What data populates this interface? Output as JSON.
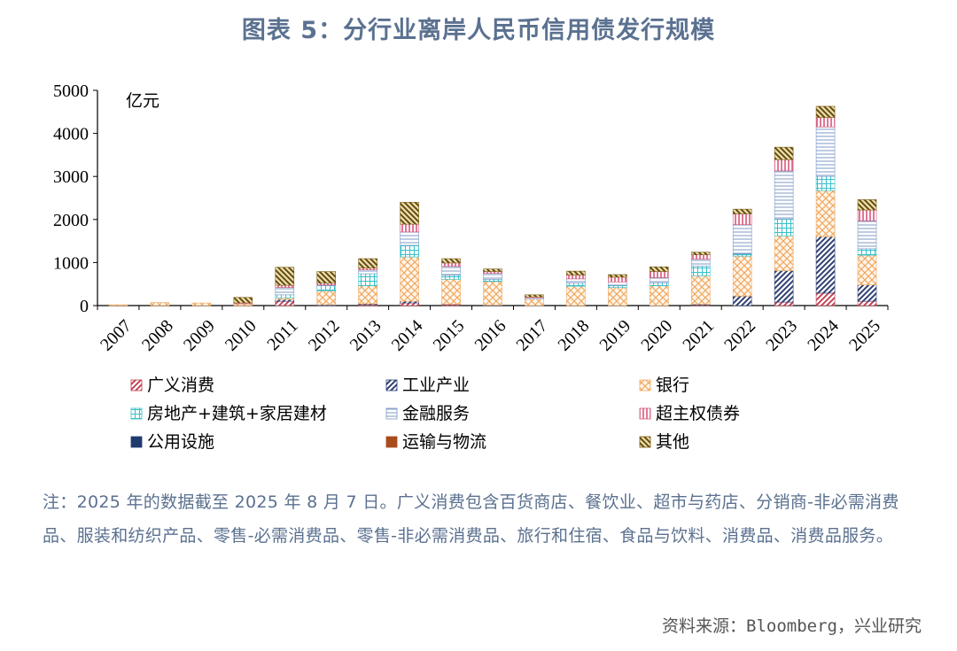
{
  "title": "图表 5：分行业离岸人民币信用债发行规模",
  "chart_data": {
    "type": "bar",
    "stacked": true,
    "unit_label": "亿元",
    "ylim": [
      0,
      5000
    ],
    "yticks": [
      0,
      1000,
      2000,
      3000,
      4000,
      5000
    ],
    "categories": [
      "2007",
      "2008",
      "2009",
      "2010",
      "2011",
      "2012",
      "2013",
      "2014",
      "2015",
      "2016",
      "2017",
      "2018",
      "2019",
      "2020",
      "2021",
      "2022",
      "2023",
      "2024",
      "2025"
    ],
    "series": [
      {
        "name": "广义消费",
        "pattern": "diag-red",
        "color": "#c0394d",
        "values": [
          0,
          0,
          0,
          0,
          100,
          0,
          20,
          60,
          20,
          0,
          0,
          0,
          0,
          0,
          10,
          0,
          80,
          290,
          100
        ]
      },
      {
        "name": "工业产业",
        "pattern": "diag-navy",
        "color": "#2f3f73",
        "values": [
          0,
          0,
          0,
          0,
          40,
          20,
          20,
          40,
          10,
          10,
          0,
          0,
          0,
          0,
          20,
          220,
          730,
          1310,
          380
        ]
      },
      {
        "name": "银行",
        "pattern": "cross-orange",
        "color": "#f0a860",
        "values": [
          20,
          70,
          60,
          40,
          40,
          320,
          420,
          1030,
          580,
          550,
          150,
          450,
          420,
          460,
          660,
          930,
          810,
          1070,
          690
        ]
      },
      {
        "name": "房地产+建筑+家居建材",
        "pattern": "plus-cyan",
        "color": "#38bfc8",
        "values": [
          0,
          0,
          0,
          0,
          70,
          120,
          280,
          270,
          100,
          50,
          0,
          70,
          50,
          70,
          230,
          50,
          390,
          330,
          150
        ]
      },
      {
        "name": "金融服务",
        "pattern": "hline-blue",
        "color": "#7f99c6",
        "values": [
          0,
          0,
          0,
          0,
          170,
          20,
          90,
          310,
          200,
          140,
          30,
          100,
          80,
          120,
          160,
          680,
          1120,
          1150,
          650
        ]
      },
      {
        "name": "超主权债券",
        "pattern": "vline-pink",
        "color": "#d8557a",
        "values": [
          0,
          0,
          0,
          20,
          50,
          40,
          40,
          180,
          80,
          40,
          20,
          90,
          110,
          140,
          100,
          250,
          260,
          220,
          250
        ]
      },
      {
        "name": "公用设施",
        "pattern": "solid-navy",
        "color": "#203a6e",
        "values": [
          0,
          0,
          0,
          0,
          0,
          0,
          0,
          0,
          0,
          0,
          0,
          0,
          0,
          0,
          0,
          0,
          0,
          0,
          0
        ]
      },
      {
        "name": "运输与物流",
        "pattern": "solid-rust",
        "color": "#a94c1c",
        "values": [
          0,
          0,
          0,
          0,
          0,
          0,
          0,
          0,
          0,
          0,
          0,
          0,
          0,
          0,
          0,
          0,
          0,
          0,
          0
        ]
      },
      {
        "name": "其他",
        "pattern": "diag-olive",
        "color": "#7b5e12",
        "values": [
          0,
          0,
          0,
          130,
          420,
          270,
          220,
          510,
          100,
          60,
          50,
          90,
          60,
          110,
          60,
          110,
          290,
          260,
          240
        ]
      }
    ]
  },
  "note": "注：2025 年的数据截至 2025 年 8 月 7 日。广义消费包含百货商店、餐饮业、超市与药店、分销商-非必需消费品、服装和纺织产品、零售-必需消费品、零售-非必需消费品、旅行和住宿、食品与饮料、消费品、消费品服务。",
  "source": "资料来源：Bloomberg，兴业研究"
}
